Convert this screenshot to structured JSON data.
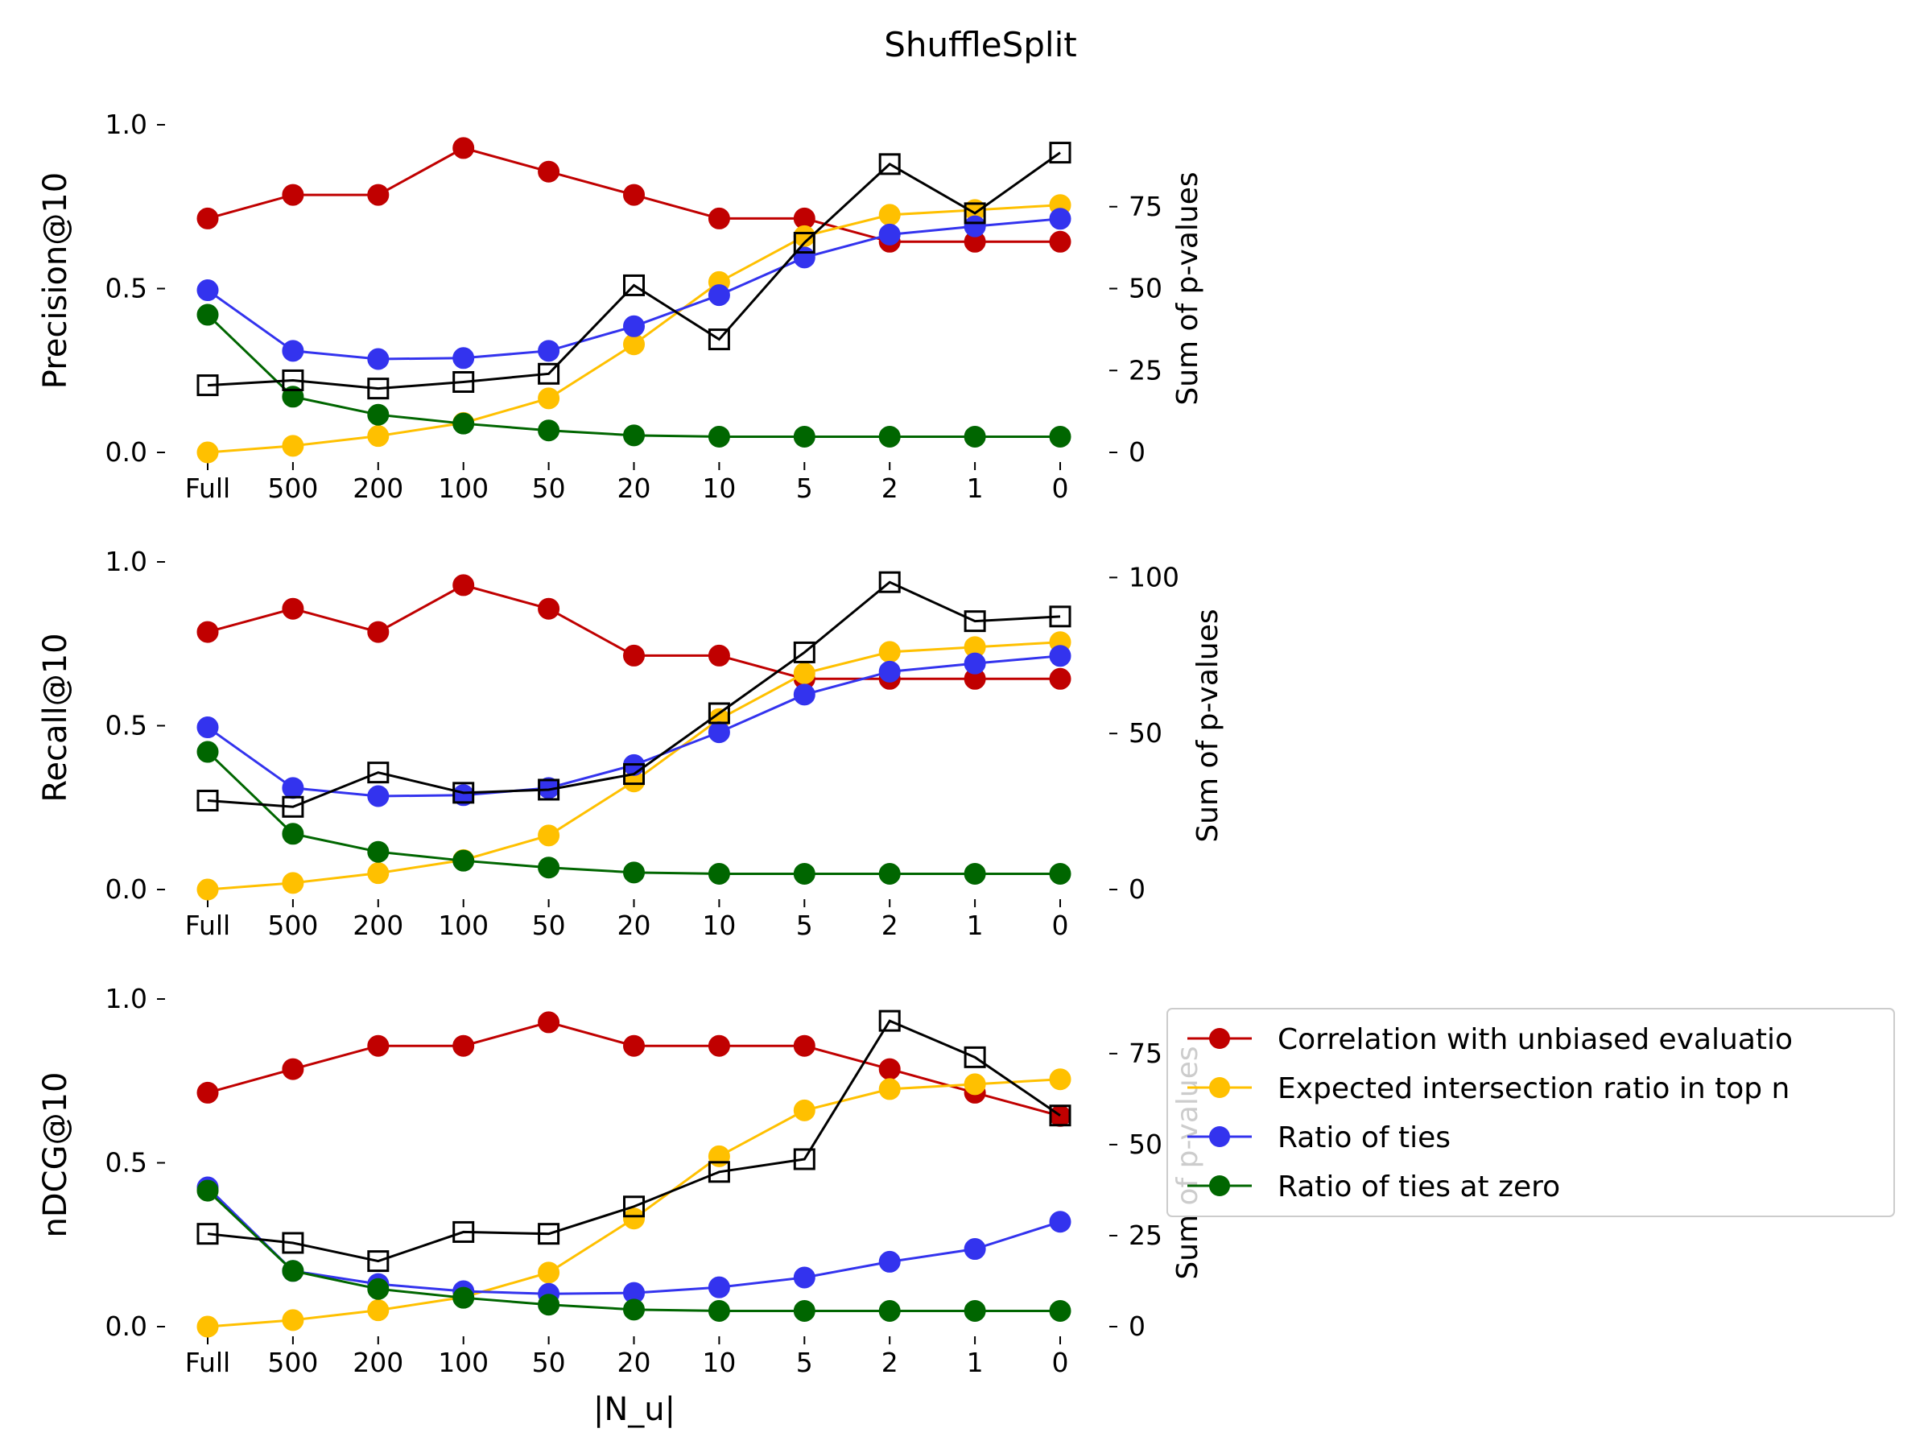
{
  "figure": {
    "title": "ShuffleSplit",
    "xlabel": "|N_u|",
    "right_ylabel": "Sum of p-values"
  },
  "legend": {
    "placement": "right of bottom panel",
    "entries": [
      {
        "label": "Correlation with unbiased evaluatio",
        "color": "#c00000"
      },
      {
        "label": "Expected intersection ratio in top n",
        "color": "#ffc000"
      },
      {
        "label": "Ratio of ties",
        "color": "#3333ee"
      },
      {
        "label": "Ratio of ties at zero",
        "color": "#006600"
      }
    ]
  },
  "colors": {
    "correlation": "#c00000",
    "intersection": "#ffc000",
    "ties": "#3333ee",
    "ties_zero": "#006600",
    "pvalues": "#000000"
  },
  "chart_data": [
    {
      "type": "line",
      "categories": [
        "Full",
        "500",
        "200",
        "100",
        "50",
        "20",
        "10",
        "5",
        "2",
        "1",
        "0"
      ],
      "ylabel": "Precision@10",
      "ylim": [
        0,
        1
      ],
      "yticks": [
        "0.0",
        "0.5",
        "1.0"
      ],
      "y2label": "Sum of p-values",
      "y2lim": [
        0,
        100
      ],
      "y2ticks": [
        "0",
        "25",
        "50",
        "75"
      ],
      "series": [
        {
          "name": "Correlation with unbiased evaluatio",
          "values": [
            0.714,
            0.786,
            0.786,
            0.929,
            0.857,
            0.786,
            0.714,
            0.714,
            0.643,
            0.643,
            0.643
          ]
        },
        {
          "name": "Expected intersection ratio in top n",
          "values": [
            0.0,
            0.02,
            0.05,
            0.09,
            0.165,
            0.33,
            0.52,
            0.66,
            0.725,
            0.74,
            0.755
          ]
        },
        {
          "name": "Ratio of ties",
          "values": [
            0.495,
            0.31,
            0.285,
            0.288,
            0.31,
            0.385,
            0.48,
            0.595,
            0.665,
            0.69,
            0.713
          ]
        },
        {
          "name": "Ratio of ties at zero",
          "values": [
            0.42,
            0.17,
            0.115,
            0.088,
            0.067,
            0.052,
            0.048,
            0.048,
            0.048,
            0.048,
            0.048
          ]
        }
      ],
      "pvalues": [
        20.5,
        22.0,
        19.5,
        21.5,
        24.0,
        51.0,
        34.5,
        64.0,
        88.0,
        73.0,
        91.5
      ]
    },
    {
      "type": "line",
      "categories": [
        "Full",
        "500",
        "200",
        "100",
        "50",
        "20",
        "10",
        "5",
        "2",
        "1",
        "0"
      ],
      "ylabel": "Recall@10",
      "ylim": [
        0,
        1
      ],
      "yticks": [
        "0.0",
        "0.5",
        "1.0"
      ],
      "y2label": "Sum of p-values",
      "y2lim": [
        0,
        105
      ],
      "y2ticks": [
        "0",
        "50",
        "100"
      ],
      "series": [
        {
          "name": "Correlation with unbiased evaluatio",
          "values": [
            0.786,
            0.857,
            0.786,
            0.929,
            0.857,
            0.714,
            0.714,
            0.643,
            0.643,
            0.643,
            0.643
          ]
        },
        {
          "name": "Expected intersection ratio in top n",
          "values": [
            0.0,
            0.02,
            0.05,
            0.09,
            0.165,
            0.33,
            0.52,
            0.66,
            0.725,
            0.74,
            0.755
          ]
        },
        {
          "name": "Ratio of ties",
          "values": [
            0.495,
            0.31,
            0.285,
            0.288,
            0.31,
            0.38,
            0.48,
            0.595,
            0.665,
            0.69,
            0.713
          ]
        },
        {
          "name": "Ratio of ties at zero",
          "values": [
            0.42,
            0.17,
            0.115,
            0.088,
            0.067,
            0.052,
            0.048,
            0.048,
            0.048,
            0.048,
            0.048
          ]
        }
      ],
      "pvalues": [
        28.5,
        26.5,
        37.5,
        31.0,
        32.0,
        37.0,
        56.5,
        76.0,
        98.5,
        86.0,
        87.5
      ]
    },
    {
      "type": "line",
      "categories": [
        "Full",
        "500",
        "200",
        "100",
        "50",
        "20",
        "10",
        "5",
        "2",
        "1",
        "0"
      ],
      "xlabel": "|N_u|",
      "ylabel": "nDCG@10",
      "ylim": [
        0,
        1
      ],
      "yticks": [
        "0.0",
        "0.5",
        "1.0"
      ],
      "y2label": "Sum of p-values",
      "y2lim": [
        0,
        90
      ],
      "y2ticks": [
        "0",
        "25",
        "50",
        "75"
      ],
      "series": [
        {
          "name": "Correlation with unbiased evaluatio",
          "values": [
            0.714,
            0.786,
            0.857,
            0.857,
            0.929,
            0.857,
            0.857,
            0.857,
            0.786,
            0.714,
            0.643
          ]
        },
        {
          "name": "Expected intersection ratio in top n",
          "values": [
            0.0,
            0.02,
            0.05,
            0.09,
            0.165,
            0.33,
            0.52,
            0.66,
            0.725,
            0.74,
            0.755
          ]
        },
        {
          "name": "Ratio of ties",
          "values": [
            0.425,
            0.17,
            0.13,
            0.108,
            0.1,
            0.103,
            0.12,
            0.15,
            0.198,
            0.237,
            0.32
          ]
        },
        {
          "name": "Ratio of ties at zero",
          "values": [
            0.415,
            0.17,
            0.115,
            0.088,
            0.067,
            0.052,
            0.048,
            0.048,
            0.048,
            0.048,
            0.048
          ]
        }
      ],
      "pvalues": [
        25.5,
        23.0,
        18.0,
        26.0,
        25.5,
        33.0,
        42.5,
        46.0,
        84.0,
        74.0,
        58.0
      ]
    }
  ]
}
